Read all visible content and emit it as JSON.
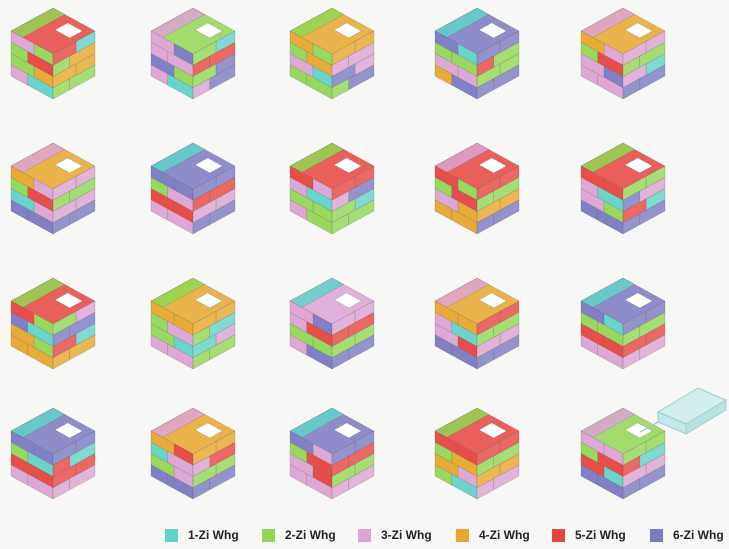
{
  "colors": {
    "1": "#62d2c8",
    "2": "#92d655",
    "3": "#dca3d3",
    "4": "#e7a62c",
    "5": "#e6453f",
    "6": "#7b79c2"
  },
  "legend": [
    {
      "key": "1",
      "label": "1-Zi Whg"
    },
    {
      "key": "2",
      "label": "2-Zi Whg"
    },
    {
      "key": "3",
      "label": "3-Zi Whg"
    },
    {
      "key": "4",
      "label": "4-Zi Whg"
    },
    {
      "key": "5",
      "label": "5-Zi Whg"
    },
    {
      "key": "6",
      "label": "6-Zi Whg"
    }
  ],
  "cubes": [
    {
      "top": "5",
      "back": "2",
      "left": [
        "32",
        "25",
        "24",
        "31"
      ],
      "right": [
        "51",
        "24",
        "44",
        "22"
      ]
    },
    {
      "top": "2",
      "back": "3",
      "left": [
        "36",
        "33",
        "62",
        "31"
      ],
      "right": [
        "21",
        "55",
        "26",
        "36"
      ]
    },
    {
      "top": "4",
      "back": "2",
      "left": [
        "42",
        "24",
        "31",
        "22"
      ],
      "right": [
        "44",
        "33",
        "63",
        "26"
      ]
    },
    {
      "top": "6",
      "back": "1",
      "left": [
        "61",
        "22",
        "33",
        "46"
      ],
      "right": [
        "66",
        "52",
        "22",
        "66"
      ]
    },
    {
      "top": "4",
      "back": "3",
      "left": [
        "43",
        "25",
        "36",
        "33"
      ],
      "right": [
        "33",
        "22",
        "31",
        "66"
      ]
    },
    {
      "top": "4",
      "back": "3",
      "left": [
        "43",
        "25",
        "13",
        "66"
      ],
      "right": [
        "33",
        "22",
        "33",
        "66"
      ]
    },
    {
      "top": "6",
      "back": "1",
      "left": [
        "66",
        "23",
        "55",
        "33"
      ],
      "right": [
        "66",
        "55",
        "33",
        "66"
      ]
    },
    {
      "top": "5",
      "back": "2",
      "left": [
        "53",
        "31",
        "22",
        "32"
      ],
      "right": [
        "55",
        "36",
        "21",
        "22"
      ]
    },
    {
      "top": "5",
      "back": "3",
      "left": [
        "52",
        "25",
        "34",
        "44"
      ],
      "right": [
        "55",
        "22",
        "44",
        "66"
      ]
    },
    {
      "top": "5",
      "back": "2",
      "left": [
        "55",
        "31",
        "32",
        "66"
      ],
      "right": [
        "22",
        "63",
        "51",
        "66"
      ]
    },
    {
      "top": "5",
      "back": "2",
      "left": [
        "52",
        "61",
        "42",
        "44"
      ],
      "right": [
        "23",
        "66",
        "51",
        "44"
      ]
    },
    {
      "top": "4",
      "back": "2",
      "left": [
        "44",
        "23",
        "21",
        "33"
      ],
      "right": [
        "44",
        "21",
        "13",
        "22"
      ]
    },
    {
      "top": "3",
      "back": "1",
      "left": [
        "36",
        "35",
        "22",
        "36"
      ],
      "right": [
        "33",
        "55",
        "22",
        "66"
      ]
    },
    {
      "top": "4",
      "back": "3",
      "left": [
        "44",
        "31",
        "35",
        "66"
      ],
      "right": [
        "55",
        "22",
        "33",
        "66"
      ]
    },
    {
      "top": "6",
      "back": "1",
      "left": [
        "61",
        "22",
        "55",
        "33"
      ],
      "right": [
        "66",
        "22",
        "55",
        "33"
      ]
    },
    {
      "top": "6",
      "back": "1",
      "left": [
        "66",
        "21",
        "55",
        "33"
      ],
      "right": [
        "66",
        "51",
        "55",
        "33"
      ]
    },
    {
      "top": "4",
      "back": "3",
      "left": [
        "45",
        "13",
        "23",
        "66"
      ],
      "right": [
        "44",
        "35",
        "22",
        "66"
      ]
    },
    {
      "top": "6",
      "back": "1",
      "left": [
        "63",
        "25",
        "35",
        "33"
      ],
      "right": [
        "66",
        "55",
        "22",
        "33"
      ]
    },
    {
      "top": "5",
      "back": "2",
      "left": [
        "55",
        "24",
        "43",
        "21"
      ],
      "right": [
        "55",
        "22",
        "44",
        "33"
      ]
    },
    {
      "top": "2",
      "back": "3",
      "left": [
        "33",
        "25",
        "51",
        "66"
      ],
      "right": [
        "22",
        "51",
        "33",
        "66"
      ]
    }
  ]
}
